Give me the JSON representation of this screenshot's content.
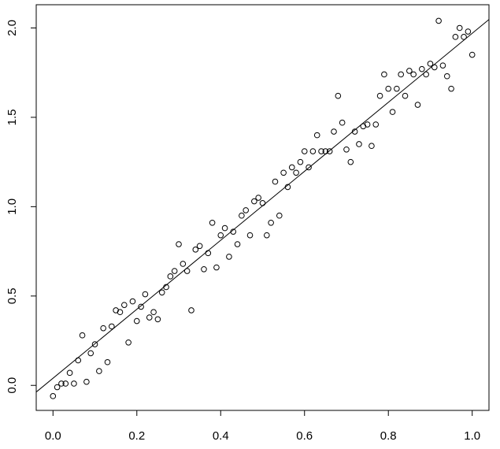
{
  "chart_data": {
    "type": "scatter",
    "x": [
      0,
      0.01,
      0.02,
      0.03,
      0.04,
      0.05,
      0.06,
      0.07,
      0.08,
      0.09,
      0.1,
      0.11,
      0.12,
      0.13,
      0.14,
      0.15,
      0.16,
      0.17,
      0.18,
      0.19,
      0.2,
      0.21,
      0.22,
      0.23,
      0.24,
      0.25,
      0.26,
      0.27,
      0.28,
      0.29,
      0.3,
      0.31,
      0.32,
      0.33,
      0.34,
      0.35,
      0.36,
      0.37,
      0.38,
      0.39,
      0.4,
      0.41,
      0.42,
      0.43,
      0.44,
      0.45,
      0.46,
      0.47,
      0.48,
      0.49,
      0.5,
      0.51,
      0.52,
      0.53,
      0.54,
      0.55,
      0.56,
      0.57,
      0.58,
      0.59,
      0.6,
      0.61,
      0.62,
      0.63,
      0.64,
      0.65,
      0.66,
      0.67,
      0.68,
      0.69,
      0.7,
      0.71,
      0.72,
      0.73,
      0.74,
      0.75,
      0.76,
      0.77,
      0.78,
      0.79,
      0.8,
      0.81,
      0.82,
      0.83,
      0.84,
      0.85,
      0.86,
      0.87,
      0.88,
      0.89,
      0.9,
      0.91,
      0.92,
      0.93,
      0.94,
      0.95,
      0.96,
      0.97,
      0.98,
      0.99,
      1
    ],
    "values": [
      -0.06,
      -0.01,
      0.01,
      0.01,
      0.07,
      0.01,
      0.14,
      0.28,
      0.02,
      0.18,
      0.23,
      0.08,
      0.32,
      0.13,
      0.33,
      0.42,
      0.41,
      0.45,
      0.24,
      0.47,
      0.36,
      0.44,
      0.51,
      0.38,
      0.41,
      0.37,
      0.52,
      0.55,
      0.61,
      0.64,
      0.79,
      0.68,
      0.64,
      0.42,
      0.76,
      0.78,
      0.65,
      0.74,
      0.91,
      0.66,
      0.84,
      0.88,
      0.72,
      0.86,
      0.79,
      0.95,
      0.98,
      0.84,
      1.03,
      1.05,
      1.02,
      0.84,
      0.91,
      1.14,
      0.95,
      1.19,
      1.11,
      1.22,
      1.19,
      1.25,
      1.31,
      1.22,
      1.31,
      1.4,
      1.31,
      1.31,
      1.31,
      1.42,
      1.62,
      1.47,
      1.32,
      1.25,
      1.42,
      1.35,
      1.45,
      1.46,
      1.34,
      1.46,
      1.62,
      1.74,
      1.66,
      1.53,
      1.66,
      1.74,
      1.62,
      1.76,
      1.74,
      1.57,
      1.77,
      1.74,
      1.8,
      1.78,
      2.04,
      1.79,
      1.73,
      1.66,
      1.95,
      2.0,
      1.95,
      1.98,
      1.85
    ],
    "color": "#000000",
    "fit_line": {
      "intercept": 0.04,
      "slope": 1.93
    },
    "xlim": [
      -0.04,
      1.04
    ],
    "ylim": [
      -0.14,
      2.13
    ],
    "xticks": [
      {
        "value": 0,
        "label": "0.0"
      },
      0.2,
      0.4,
      0.6,
      0.8,
      {
        "value": 1,
        "label": "1.0"
      }
    ],
    "yticks": [
      {
        "value": 0,
        "label": "0.0"
      },
      0.5,
      {
        "value": 1,
        "label": "1.0"
      },
      1.5,
      {
        "value": 2,
        "label": "2.0"
      }
    ]
  }
}
